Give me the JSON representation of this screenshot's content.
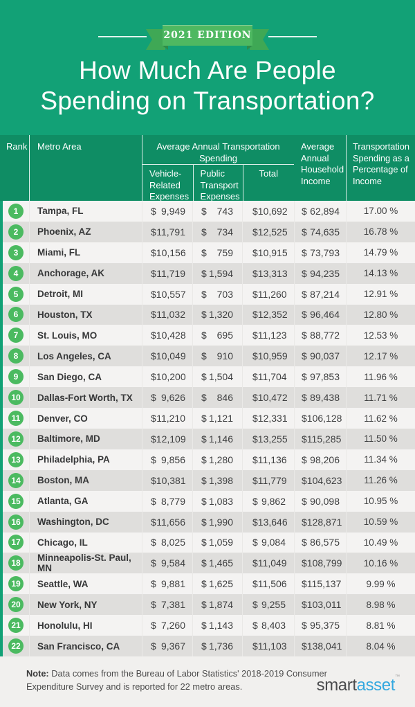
{
  "edition_badge": "2021 EDITION",
  "title_lines": [
    "How Much Are People",
    "Spending on Transportation?"
  ],
  "colors": {
    "background_green": "#12A176",
    "header_green": "#0F8D64",
    "ribbon_green": "#4EB861",
    "ribbon_tail_green": "#3FA855",
    "ribbon_fold_green": "#2E8C49",
    "rank_badge_green": "#4BBA60",
    "row_light": "#F4F3F2",
    "row_dark": "#DFDEDC",
    "footer_bg": "#F1F0EE",
    "logo_blue": "#34A8DF"
  },
  "table": {
    "currency_symbol": "$",
    "columns": {
      "rank": "Rank",
      "metro": "Metro Area",
      "spending_group": "Average Annual Transportation Spending",
      "vehicle": "Vehicle-Related Expenses",
      "public_transport": "Public Transport Expenses",
      "total": "Total",
      "income": "Average Annual Household Income",
      "pct": "Transportation Spending as a Percentage of Income"
    }
  },
  "chart_data": {
    "type": "table",
    "title": "How Much Are People Spending on Transportation?",
    "columns": [
      "Rank",
      "Metro Area",
      "Vehicle-Related Expenses",
      "Public Transport Expenses",
      "Total",
      "Average Annual Household Income",
      "Transportation Spending as a Percentage of Income"
    ],
    "rows": [
      [
        "1",
        "Tampa, FL",
        "9,949",
        "743",
        "10,692",
        "62,894",
        "17.00 %"
      ],
      [
        "2",
        "Phoenix, AZ",
        "11,791",
        "734",
        "12,525",
        "74,635",
        "16.78 %"
      ],
      [
        "3",
        "Miami, FL",
        "10,156",
        "759",
        "10,915",
        "73,793",
        "14.79 %"
      ],
      [
        "4",
        "Anchorage, AK",
        "11,719",
        "1,594",
        "13,313",
        "94,235",
        "14.13 %"
      ],
      [
        "5",
        "Detroit, MI",
        "10,557",
        "703",
        "11,260",
        "87,214",
        "12.91 %"
      ],
      [
        "6",
        "Houston, TX",
        "11,032",
        "1,320",
        "12,352",
        "96,464",
        "12.80 %"
      ],
      [
        "7",
        "St. Louis, MO",
        "10,428",
        "695",
        "11,123",
        "88,772",
        "12.53 %"
      ],
      [
        "8",
        "Los Angeles, CA",
        "10,049",
        "910",
        "10,959",
        "90,037",
        "12.17 %"
      ],
      [
        "9",
        "San Diego, CA",
        "10,200",
        "1,504",
        "11,704",
        "97,853",
        "11.96 %"
      ],
      [
        "10",
        "Dallas-Fort Worth, TX",
        "9,626",
        "846",
        "10,472",
        "89,438",
        "11.71 %"
      ],
      [
        "11",
        "Denver, CO",
        "11,210",
        "1,121",
        "12,331",
        "106,128",
        "11.62 %"
      ],
      [
        "12",
        "Baltimore, MD",
        "12,109",
        "1,146",
        "13,255",
        "115,285",
        "11.50 %"
      ],
      [
        "13",
        "Philadelphia, PA",
        "9,856",
        "1,280",
        "11,136",
        "98,206",
        "11.34 %"
      ],
      [
        "14",
        "Boston, MA",
        "10,381",
        "1,398",
        "11,779",
        "104,623",
        "11.26 %"
      ],
      [
        "15",
        "Atlanta, GA",
        "8,779",
        "1,083",
        "9,862",
        "90,098",
        "10.95 %"
      ],
      [
        "16",
        "Washington, DC",
        "11,656",
        "1,990",
        "13,646",
        "128,871",
        "10.59 %"
      ],
      [
        "17",
        "Chicago, IL",
        "8,025",
        "1,059",
        "9,084",
        "86,575",
        "10.49 %"
      ],
      [
        "18",
        "Minneapolis-St. Paul, MN",
        "9,584",
        "1,465",
        "11,049",
        "108,799",
        "10.16 %"
      ],
      [
        "19",
        "Seattle, WA",
        "9,881",
        "1,625",
        "11,506",
        "115,137",
        "9.99 %"
      ],
      [
        "20",
        "New York, NY",
        "7,381",
        "1,874",
        "9,255",
        "103,011",
        "8.98 %"
      ],
      [
        "21",
        "Honolulu, HI",
        "7,260",
        "1,143",
        "8,403",
        "95,375",
        "8.81 %"
      ],
      [
        "22",
        "San Francisco, CA",
        "9,367",
        "1,736",
        "11,103",
        "138,041",
        "8.04 %"
      ]
    ]
  },
  "footer": {
    "note_label": "Note:",
    "note_text": " Data comes from the Bureau of Labor Statistics' 2018-2019 Consumer Expenditure Survey and is reported for 22 metro areas.",
    "logo_smart": "smart",
    "logo_asset": "asset",
    "logo_tm": "™"
  }
}
